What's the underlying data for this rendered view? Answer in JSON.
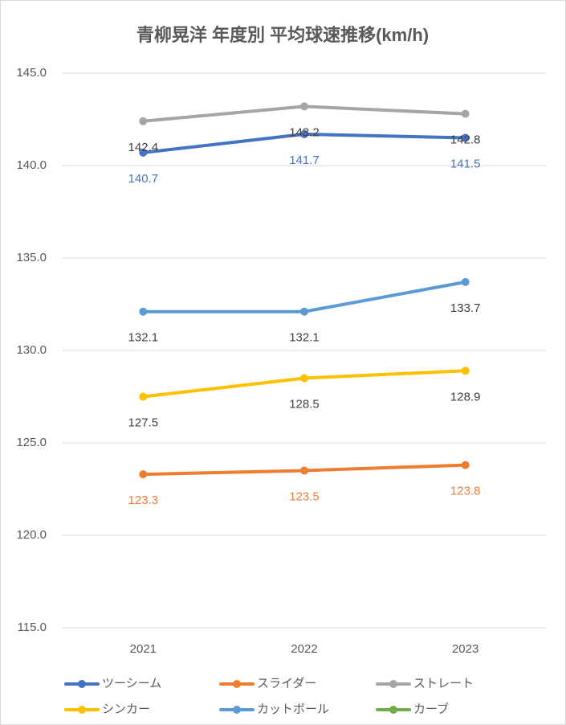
{
  "chart_data": {
    "type": "line",
    "title": "青柳晃洋 年度別 平均球速推移(km/h)",
    "categories": [
      "2021",
      "2022",
      "2023"
    ],
    "series": [
      {
        "name": "ツーシーム",
        "color": "#4472c4",
        "values": [
          140.7,
          141.7,
          141.5
        ]
      },
      {
        "name": "スライダー",
        "color": "#ed7d31",
        "values": [
          123.3,
          123.5,
          123.8
        ]
      },
      {
        "name": "ストレート",
        "color": "#a5a5a5",
        "values": [
          142.4,
          143.2,
          142.8
        ]
      },
      {
        "name": "シンカー",
        "color": "#ffc000",
        "values": [
          127.5,
          128.5,
          128.9
        ]
      },
      {
        "name": "カットボール",
        "color": "#5b9bd5",
        "values": [
          132.1,
          132.1,
          133.7
        ]
      },
      {
        "name": "カーブ",
        "color": "#70ad47",
        "values": [
          null,
          null,
          null
        ]
      }
    ],
    "ylim": [
      115,
      145
    ],
    "yticks": [
      {
        "value": 115,
        "label": "115.0"
      },
      {
        "value": 120,
        "label": "120.0"
      },
      {
        "value": 125,
        "label": "125.0"
      },
      {
        "value": 130,
        "label": "130.0"
      },
      {
        "value": 135,
        "label": "135.0"
      },
      {
        "value": 140,
        "label": "140.0"
      },
      {
        "value": 145,
        "label": "145.0"
      }
    ],
    "grid": true,
    "legend": "bottom"
  }
}
